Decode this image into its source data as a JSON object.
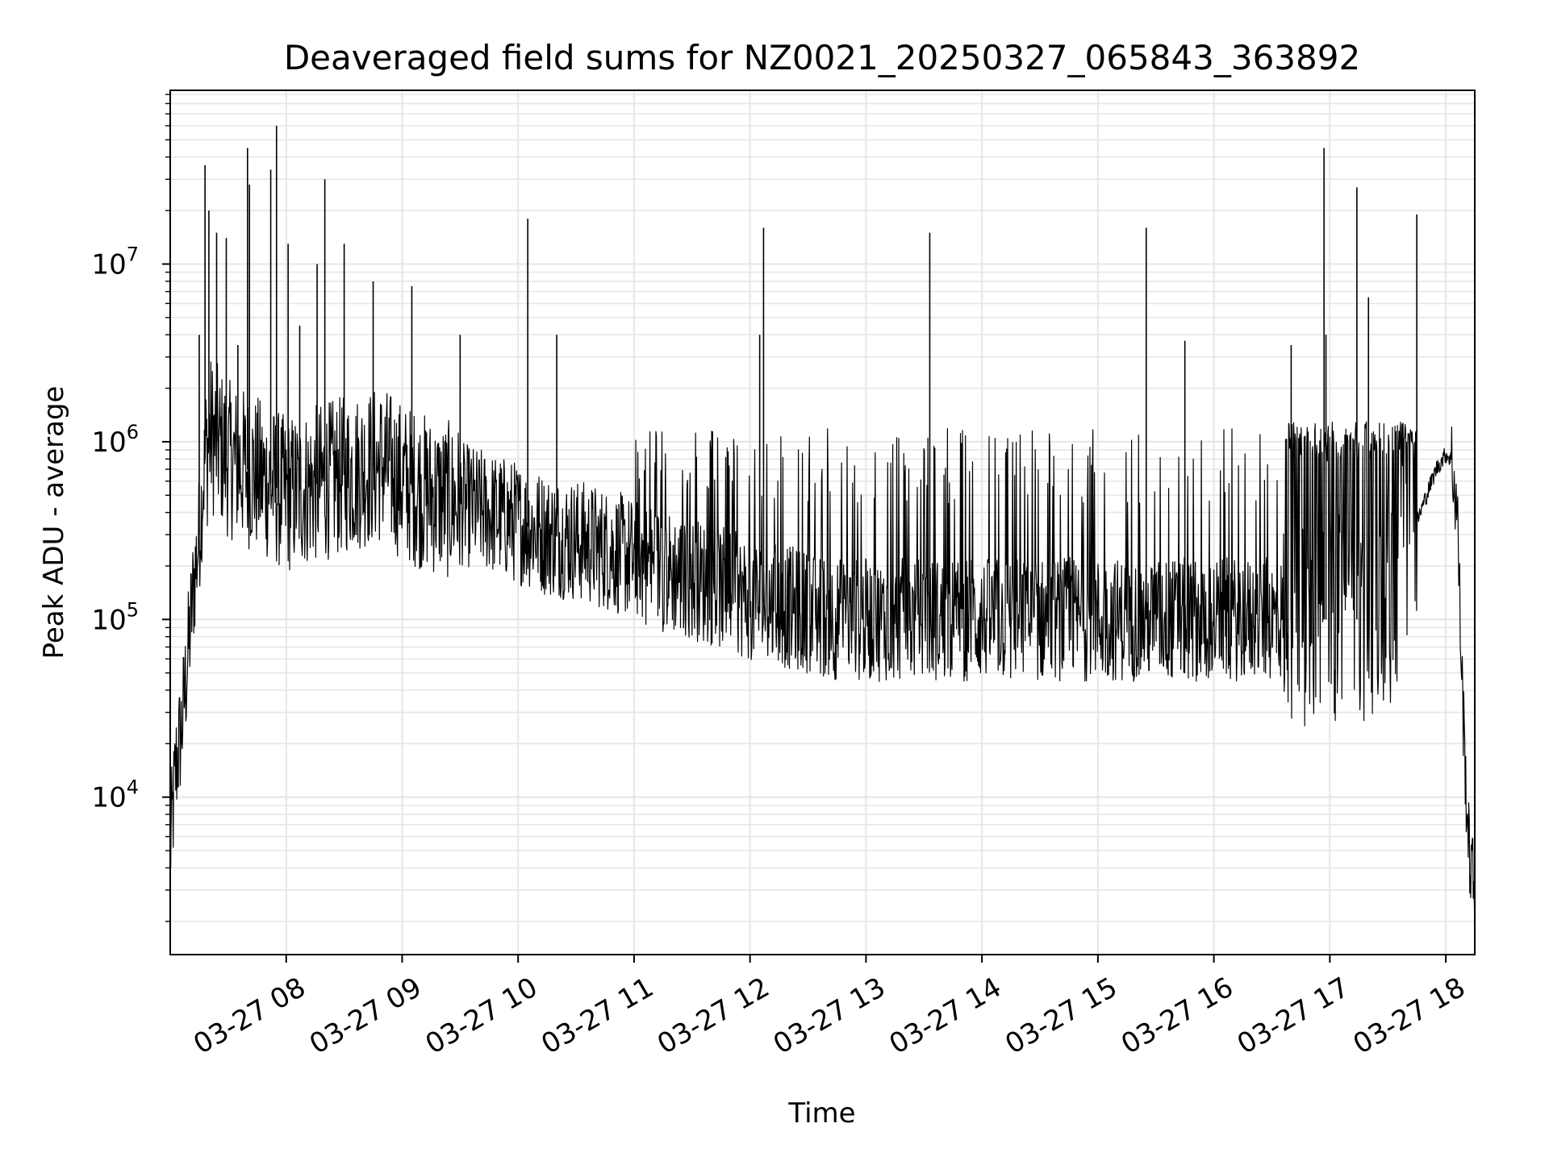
{
  "chart_data": {
    "type": "line",
    "title": "Deaveraged field sums for NZ0021_20250327_065843_363892",
    "xlabel": "Time",
    "ylabel": "Peak ADU - average",
    "y_scale": "log",
    "ylim": [
      1300,
      95000000
    ],
    "xlim": [
      "03-27 07:00",
      "03-27 18:15"
    ],
    "grid": true,
    "line_color": "#000000",
    "grid_color": "#e6e6e6",
    "x_ticks": [
      "03-27 08",
      "03-27 09",
      "03-27 10",
      "03-27 11",
      "03-27 12",
      "03-27 13",
      "03-27 14",
      "03-27 15",
      "03-27 16",
      "03-27 17",
      "03-27 18"
    ],
    "y_ticks": [
      {
        "label": "10",
        "exp": "4"
      },
      {
        "label": "10",
        "exp": "5"
      },
      {
        "label": "10",
        "exp": "6"
      },
      {
        "label": "10",
        "exp": "7"
      }
    ],
    "series": [
      {
        "x": [
          "03-27 07:00",
          "03-27 07:03",
          "03-27 07:06",
          "03-27 07:09",
          "03-27 07:12",
          "03-27 07:15",
          "03-27 07:18",
          "03-27 07:21",
          "03-27 07:24",
          "03-27 07:27",
          "03-27 07:30",
          "03-27 07:35",
          "03-27 07:40",
          "03-27 07:45",
          "03-27 07:50",
          "03-27 07:55",
          "03-27 08:00",
          "03-27 08:10",
          "03-27 08:20",
          "03-27 08:30",
          "03-27 08:40",
          "03-27 08:50",
          "03-27 09:00",
          "03-27 09:15",
          "03-27 09:30",
          "03-27 09:45",
          "03-27 10:00",
          "03-27 10:15",
          "03-27 10:30",
          "03-27 10:45",
          "03-27 11:00",
          "03-27 11:15",
          "03-27 11:30",
          "03-27 11:45",
          "03-27 12:00",
          "03-27 12:15",
          "03-27 12:30",
          "03-27 12:45",
          "03-27 13:00",
          "03-27 13:15",
          "03-27 13:30",
          "03-27 13:45",
          "03-27 14:00",
          "03-27 14:15",
          "03-27 14:30",
          "03-27 14:45",
          "03-27 15:00",
          "03-27 15:15",
          "03-27 15:30",
          "03-27 15:45",
          "03-27 16:00",
          "03-27 16:15",
          "03-27 16:30",
          "03-27 16:45",
          "03-27 17:00",
          "03-27 17:15",
          "03-27 17:30",
          "03-27 17:40",
          "03-27 17:50",
          "03-27 17:55",
          "03-27 18:00",
          "03-27 18:03",
          "03-27 18:06",
          "03-27 18:08",
          "03-27 18:10",
          "03-27 18:12",
          "03-27 18:14",
          "03-27 18:15"
        ],
        "y": [
          5000,
          15000,
          25000,
          60000,
          150000,
          300000,
          800000,
          1100000,
          1000000,
          900000,
          800000,
          750000,
          700000,
          650000,
          600000,
          550000,
          500000,
          550000,
          600000,
          650000,
          700000,
          750000,
          600000,
          500000,
          450000,
          400000,
          350000,
          300000,
          280000,
          250000,
          220000,
          190000,
          170000,
          150000,
          130000,
          120000,
          110000,
          100000,
          100000,
          100000,
          100000,
          100000,
          100000,
          100000,
          100000,
          100000,
          100000,
          100000,
          100000,
          100000,
          100000,
          100000,
          100000,
          100000,
          100000,
          100000,
          120000,
          250000,
          500000,
          700000,
          850000,
          800000,
          400000,
          60000,
          15000,
          5000,
          3500,
          3000
        ]
      }
    ],
    "spikes": [
      {
        "x": "03-27 07:15",
        "y": 4000000
      },
      {
        "x": "03-27 07:18",
        "y": 36000000
      },
      {
        "x": "03-27 07:20",
        "y": 20000000
      },
      {
        "x": "03-27 07:24",
        "y": 15000000
      },
      {
        "x": "03-27 07:29",
        "y": 14000000
      },
      {
        "x": "03-27 07:35",
        "y": 3500000
      },
      {
        "x": "03-27 07:40",
        "y": 45000000
      },
      {
        "x": "03-27 07:41",
        "y": 28000000
      },
      {
        "x": "03-27 07:52",
        "y": 34000000
      },
      {
        "x": "03-27 07:55",
        "y": 60000000
      },
      {
        "x": "03-27 08:01",
        "y": 13000000
      },
      {
        "x": "03-27 08:07",
        "y": 4500000
      },
      {
        "x": "03-27 08:16",
        "y": 10000000
      },
      {
        "x": "03-27 08:20",
        "y": 30000000
      },
      {
        "x": "03-27 08:30",
        "y": 13000000
      },
      {
        "x": "03-27 08:45",
        "y": 8000000
      },
      {
        "x": "03-27 09:05",
        "y": 7500000
      },
      {
        "x": "03-27 09:30",
        "y": 4000000
      },
      {
        "x": "03-27 10:05",
        "y": 18000000
      },
      {
        "x": "03-27 10:20",
        "y": 4000000
      },
      {
        "x": "03-27 12:07",
        "y": 16000000
      },
      {
        "x": "03-27 12:05",
        "y": 4000000
      },
      {
        "x": "03-27 13:33",
        "y": 15000000
      },
      {
        "x": "03-27 15:25",
        "y": 16000000
      },
      {
        "x": "03-27 15:45",
        "y": 3700000
      },
      {
        "x": "03-27 16:40",
        "y": 3500000
      },
      {
        "x": "03-27 16:57",
        "y": 45000000
      },
      {
        "x": "03-27 16:58",
        "y": 4000000
      },
      {
        "x": "03-27 17:14",
        "y": 27000000
      },
      {
        "x": "03-27 17:20",
        "y": 6500000
      },
      {
        "x": "03-27 17:45",
        "y": 19000000
      }
    ]
  }
}
